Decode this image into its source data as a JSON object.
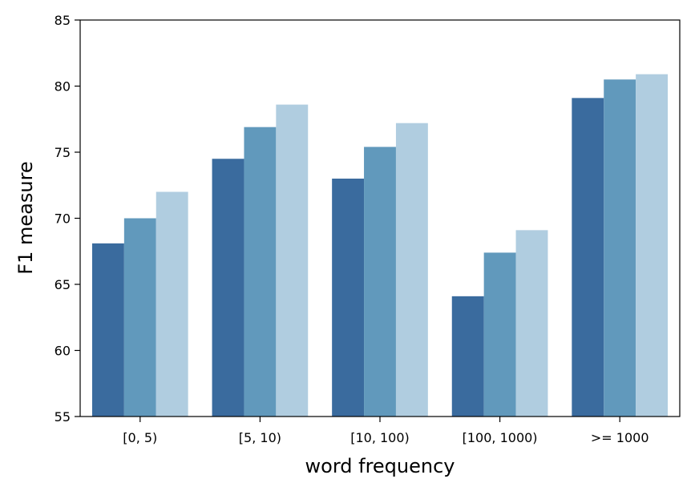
{
  "chart_data": {
    "type": "bar",
    "title": "",
    "xlabel": "word frequency",
    "ylabel": "F1 measure",
    "categories": [
      "[0, 5)",
      "[5, 10)",
      "[10, 100)",
      "[100, 1000)",
      ">= 1000"
    ],
    "series": [
      {
        "values": [
          68.1,
          74.5,
          73.0,
          64.1,
          79.1
        ],
        "color": "#3a6b9e"
      },
      {
        "values": [
          70.0,
          76.9,
          75.4,
          67.4,
          80.5
        ],
        "color": "#6199bc"
      },
      {
        "values": [
          72.0,
          78.6,
          77.2,
          69.1,
          80.9
        ],
        "color": "#b0cde0"
      }
    ],
    "ylim": [
      55,
      85
    ],
    "yticks": [
      "55",
      "60",
      "65",
      "70",
      "75",
      "80",
      "85"
    ],
    "grid": false,
    "legend": "none"
  }
}
